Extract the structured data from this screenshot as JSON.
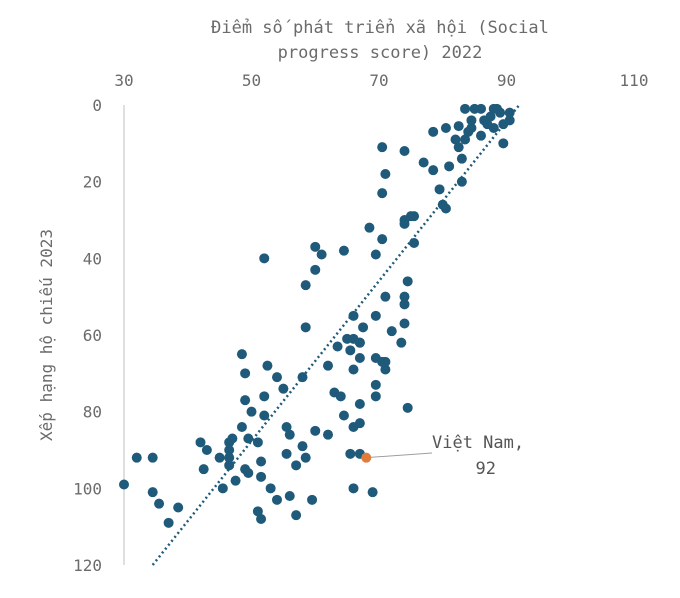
{
  "chart_data": {
    "type": "scatter",
    "title_lines": [
      "Điểm số phát triển xã hội (Social",
      "progress  score) 2022"
    ],
    "ylabel": "Xếp hạng hộ chiếu 2023",
    "xlim": [
      30,
      110
    ],
    "ylim": [
      0,
      120
    ],
    "x_ticks": [
      30,
      50,
      70,
      90,
      110
    ],
    "y_ticks": [
      0,
      20,
      40,
      60,
      80,
      100,
      120
    ],
    "y_axis_inverted": true,
    "x_axis_position": "top",
    "point_color": "#1f5a7a",
    "highlight_color": "#e07b39",
    "trendline": {
      "style": "dotted",
      "color": "#1f5a7a",
      "x": [
        34.5,
        92
      ],
      "y": [
        120,
        0
      ]
    },
    "highlight": {
      "x": 68.0,
      "y": 92,
      "label_line1": "Việt Nam,",
      "label_line2": "92"
    },
    "points": [
      [
        83.5,
        1
      ],
      [
        85,
        1
      ],
      [
        86,
        1
      ],
      [
        88,
        1
      ],
      [
        88.5,
        1
      ],
      [
        90.5,
        2
      ],
      [
        89,
        2
      ],
      [
        87.5,
        3
      ],
      [
        84.5,
        4
      ],
      [
        86.5,
        4
      ],
      [
        90.5,
        4
      ],
      [
        89.5,
        5
      ],
      [
        87,
        5
      ],
      [
        88,
        6
      ],
      [
        84,
        7
      ],
      [
        86,
        8
      ],
      [
        83.5,
        9
      ],
      [
        82.5,
        11
      ],
      [
        84.5,
        6
      ],
      [
        82.5,
        5.5
      ],
      [
        80.5,
        6
      ],
      [
        78.5,
        7
      ],
      [
        89.5,
        10
      ],
      [
        82,
        9
      ],
      [
        74,
        12
      ],
      [
        70.5,
        11
      ],
      [
        83,
        14
      ],
      [
        77,
        15
      ],
      [
        78.5,
        17
      ],
      [
        81,
        16
      ],
      [
        71,
        18
      ],
      [
        83,
        20
      ],
      [
        79.5,
        22
      ],
      [
        70.5,
        23
      ],
      [
        80.5,
        27
      ],
      [
        80,
        26
      ],
      [
        75.5,
        29
      ],
      [
        74,
        30
      ],
      [
        75,
        29
      ],
      [
        74,
        31
      ],
      [
        68.5,
        32
      ],
      [
        70.5,
        35
      ],
      [
        75.5,
        36
      ],
      [
        60,
        37
      ],
      [
        61,
        39
      ],
      [
        64.5,
        38
      ],
      [
        69.5,
        39
      ],
      [
        52,
        40
      ],
      [
        60,
        43
      ],
      [
        58.5,
        47
      ],
      [
        74.5,
        46
      ],
      [
        71,
        50
      ],
      [
        74,
        50
      ],
      [
        74,
        52
      ],
      [
        74,
        57
      ],
      [
        66,
        55
      ],
      [
        69.5,
        55
      ],
      [
        58.5,
        58
      ],
      [
        67.5,
        58
      ],
      [
        72,
        59
      ],
      [
        63.5,
        63
      ],
      [
        65,
        61
      ],
      [
        66,
        61
      ],
      [
        67,
        62
      ],
      [
        67,
        62
      ],
      [
        65.5,
        64
      ],
      [
        73.5,
        62
      ],
      [
        48.5,
        65
      ],
      [
        69.5,
        66
      ],
      [
        67,
        66
      ],
      [
        70.5,
        67
      ],
      [
        71,
        67
      ],
      [
        52.5,
        68
      ],
      [
        62,
        68
      ],
      [
        66,
        69
      ],
      [
        71,
        69
      ],
      [
        49,
        70
      ],
      [
        54,
        71
      ],
      [
        58,
        71
      ],
      [
        69.5,
        73
      ],
      [
        55,
        74
      ],
      [
        49,
        77
      ],
      [
        52,
        76
      ],
      [
        63,
        75
      ],
      [
        64,
        76
      ],
      [
        69.5,
        76
      ],
      [
        67,
        78
      ],
      [
        74.5,
        79
      ],
      [
        50,
        80
      ],
      [
        52,
        81
      ],
      [
        64.5,
        81
      ],
      [
        55.5,
        84
      ],
      [
        48.5,
        84
      ],
      [
        66,
        84
      ],
      [
        67,
        83
      ],
      [
        56,
        86
      ],
      [
        60,
        85
      ],
      [
        62,
        86
      ],
      [
        42,
        88
      ],
      [
        46.5,
        88
      ],
      [
        47,
        87
      ],
      [
        51,
        88
      ],
      [
        49.5,
        87
      ],
      [
        43,
        90
      ],
      [
        46.5,
        90
      ],
      [
        58,
        89
      ],
      [
        32,
        92
      ],
      [
        34.5,
        92
      ],
      [
        45,
        92
      ],
      [
        46.5,
        92
      ],
      [
        51.5,
        93
      ],
      [
        55.5,
        91
      ],
      [
        58.5,
        92
      ],
      [
        65.5,
        91
      ],
      [
        67,
        91
      ],
      [
        42.5,
        95
      ],
      [
        46.5,
        94
      ],
      [
        49,
        95
      ],
      [
        49.5,
        96
      ],
      [
        51.5,
        97
      ],
      [
        57,
        94
      ],
      [
        30,
        99
      ],
      [
        47.5,
        98
      ],
      [
        53,
        100
      ],
      [
        45.5,
        100
      ],
      [
        34.5,
        101
      ],
      [
        56,
        102
      ],
      [
        54,
        103
      ],
      [
        59.5,
        103
      ],
      [
        66,
        100
      ],
      [
        69,
        101
      ],
      [
        35.5,
        104
      ],
      [
        38.5,
        105
      ],
      [
        51,
        106
      ],
      [
        51.5,
        108
      ],
      [
        57,
        107
      ],
      [
        37,
        109
      ]
    ]
  }
}
